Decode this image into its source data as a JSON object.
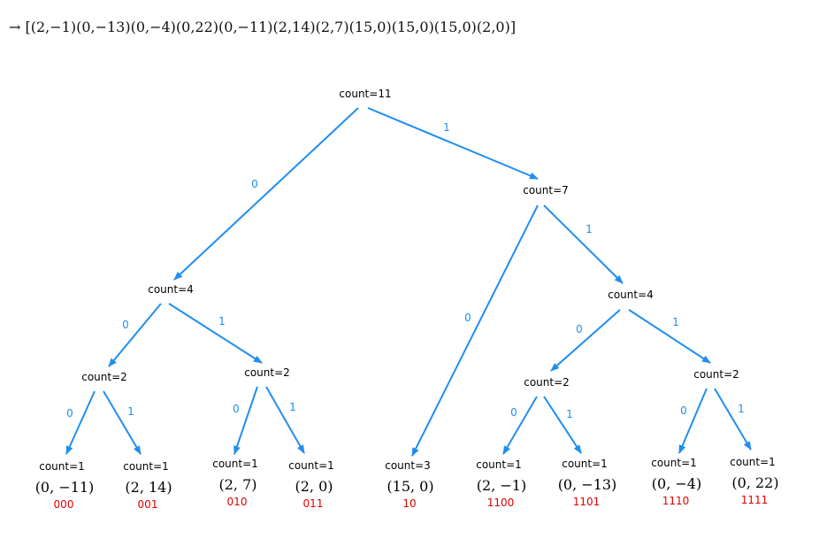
{
  "sequence": "→ [(2,−1)(0,−13)(0,−4)(0,22)(0,−11)(2,14)(2,7)(15,0)(15,0)(15,0)(2,0)]",
  "colors": {
    "edge": "#1f8ef0",
    "code": "#e00000",
    "text": "#000000"
  },
  "nodes": [
    {
      "id": "root",
      "count": "count=11"
    },
    {
      "id": "n1",
      "count": "count=7"
    },
    {
      "id": "n0",
      "count": "count=4"
    },
    {
      "id": "n11",
      "count": "count=4"
    },
    {
      "id": "n00",
      "count": "count=2"
    },
    {
      "id": "n01",
      "count": "count=2"
    },
    {
      "id": "n110",
      "count": "count=2"
    },
    {
      "id": "n111",
      "count": "count=2"
    }
  ],
  "leaves": [
    {
      "id": "l000",
      "count": "count=1",
      "pair": "(0, −11)",
      "code": "000"
    },
    {
      "id": "l001",
      "count": "count=1",
      "pair": "(2, 14)",
      "code": "001"
    },
    {
      "id": "l010",
      "count": "count=1",
      "pair": "(2, 7)",
      "code": "010"
    },
    {
      "id": "l011",
      "count": "count=1",
      "pair": "(2, 0)",
      "code": "011"
    },
    {
      "id": "l10",
      "count": "count=3",
      "pair": "(15, 0)",
      "code": "10"
    },
    {
      "id": "l1100",
      "count": "count=1",
      "pair": "(2, −1)",
      "code": "1100"
    },
    {
      "id": "l1101",
      "count": "count=1",
      "pair": "(0, −13)",
      "code": "1101"
    },
    {
      "id": "l1110",
      "count": "count=1",
      "pair": "(0, −4)",
      "code": "1110"
    },
    {
      "id": "l1111",
      "count": "count=1",
      "pair": "(0, 22)",
      "code": "1111"
    }
  ],
  "edges": [
    {
      "id": "e-root-n0",
      "label": "0"
    },
    {
      "id": "e-root-n1",
      "label": "1"
    },
    {
      "id": "e-n0-n00",
      "label": "0"
    },
    {
      "id": "e-n0-n01",
      "label": "1"
    },
    {
      "id": "e-n1-l10",
      "label": "0"
    },
    {
      "id": "e-n1-n11",
      "label": "1"
    },
    {
      "id": "e-n00-l000",
      "label": "0"
    },
    {
      "id": "e-n00-l001",
      "label": "1"
    },
    {
      "id": "e-n01-l010",
      "label": "0"
    },
    {
      "id": "e-n01-l011",
      "label": "1"
    },
    {
      "id": "e-n11-n110",
      "label": "0"
    },
    {
      "id": "e-n11-n111",
      "label": "1"
    },
    {
      "id": "e-n110-l1100",
      "label": "0"
    },
    {
      "id": "e-n110-l1101",
      "label": "1"
    },
    {
      "id": "e-n111-l1110",
      "label": "0"
    },
    {
      "id": "e-n111-l1111",
      "label": "1"
    }
  ]
}
